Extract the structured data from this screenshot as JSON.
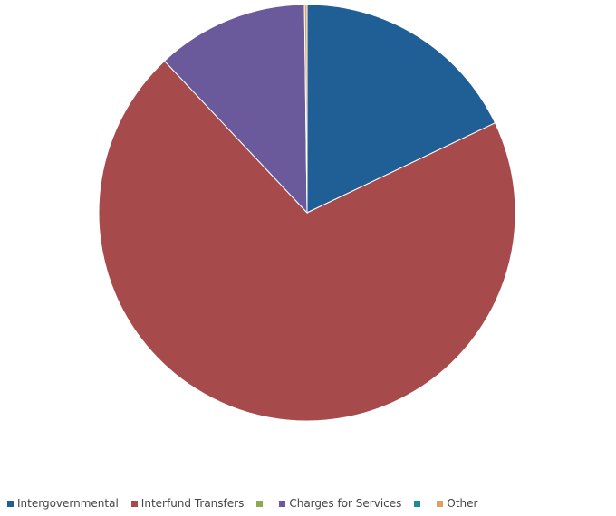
{
  "chart_data": {
    "type": "pie",
    "title": "",
    "start_angle_deg": 0,
    "direction": "clockwise",
    "slices": [
      {
        "name": "Intergovernmental",
        "value": 17.9,
        "color": "#1f5f96"
      },
      {
        "name": "Interfund Transfers",
        "value": 70.1,
        "color": "#a64a4c"
      },
      {
        "name": "",
        "value": 0,
        "color": "#8fa852"
      },
      {
        "name": "Charges for Services",
        "value": 11.8,
        "color": "#6a5a9c"
      },
      {
        "name": "",
        "value": 0,
        "color": "#1b8a94"
      },
      {
        "name": "Other",
        "value": 0.2,
        "color": "#e0a060"
      }
    ],
    "legend": {
      "placement": "bottom",
      "entries": [
        "Intergovernmental",
        "Interfund Transfers",
        "",
        "Charges for Services",
        "",
        "Other"
      ]
    }
  }
}
